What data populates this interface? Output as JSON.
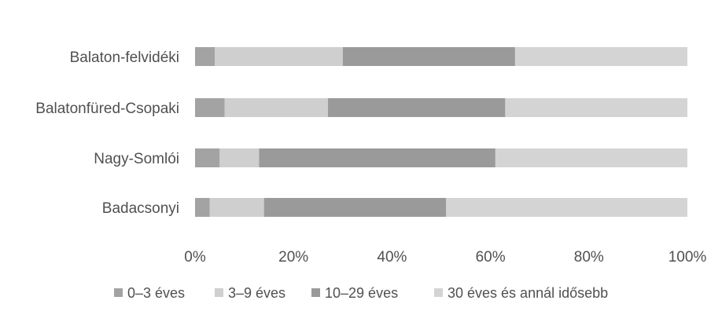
{
  "chart_data": {
    "type": "bar",
    "orientation": "horizontal",
    "stacked": "percent",
    "categories": [
      "Balaton-felvidéki",
      "Balatonfüred-Csopaki",
      "Nagy-Somlói",
      "Badacsonyi"
    ],
    "series": [
      {
        "name": "0–3 éves",
        "color": "#a3a3a3",
        "values": [
          4,
          6,
          5,
          3
        ]
      },
      {
        "name": "3–9 éves",
        "color": "#cfcfcf",
        "values": [
          26,
          21,
          8,
          11
        ]
      },
      {
        "name": "10–29 éves",
        "color": "#9a9a9a",
        "values": [
          35,
          36,
          48,
          37
        ]
      },
      {
        "name": "30 éves és annál idősebb",
        "color": "#d4d4d4",
        "values": [
          35,
          37,
          39,
          49
        ]
      }
    ],
    "xlim": [
      0,
      100
    ],
    "xticks": [
      "0%",
      "20%",
      "40%",
      "60%",
      "80%",
      "100%"
    ],
    "title": "",
    "xlabel": "",
    "ylabel": "",
    "grid": false,
    "legend_position": "bottom"
  }
}
